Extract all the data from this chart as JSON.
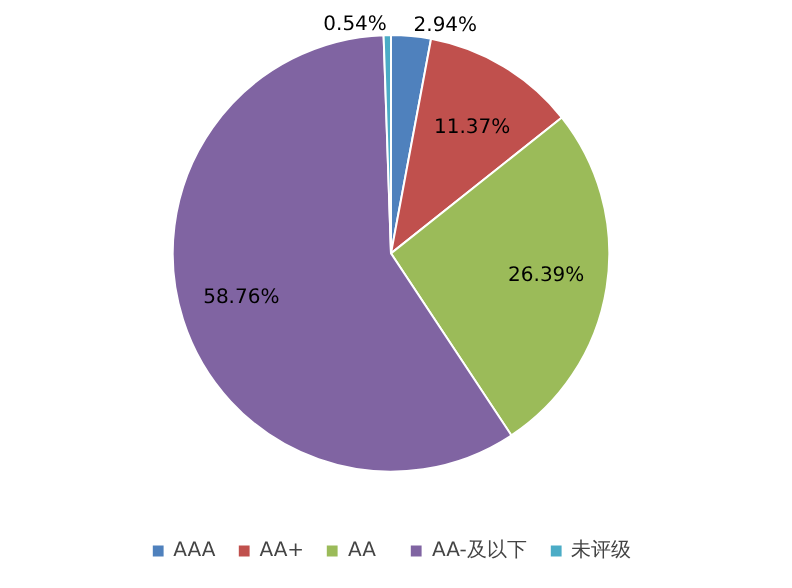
{
  "chart_data": {
    "type": "pie",
    "categories": [
      "AAA",
      "AA+",
      "AA",
      "AA-及以下",
      "未评级"
    ],
    "values": [
      2.94,
      11.37,
      26.39,
      58.76,
      0.54
    ],
    "colors": [
      "#4f81bd",
      "#c0504d",
      "#9bbb59",
      "#8064a2",
      "#4bacc6"
    ],
    "value_labels": [
      "2.94%",
      "11.37%",
      "26.39%",
      "58.76%",
      "0.54%"
    ],
    "legend": "bottom"
  }
}
